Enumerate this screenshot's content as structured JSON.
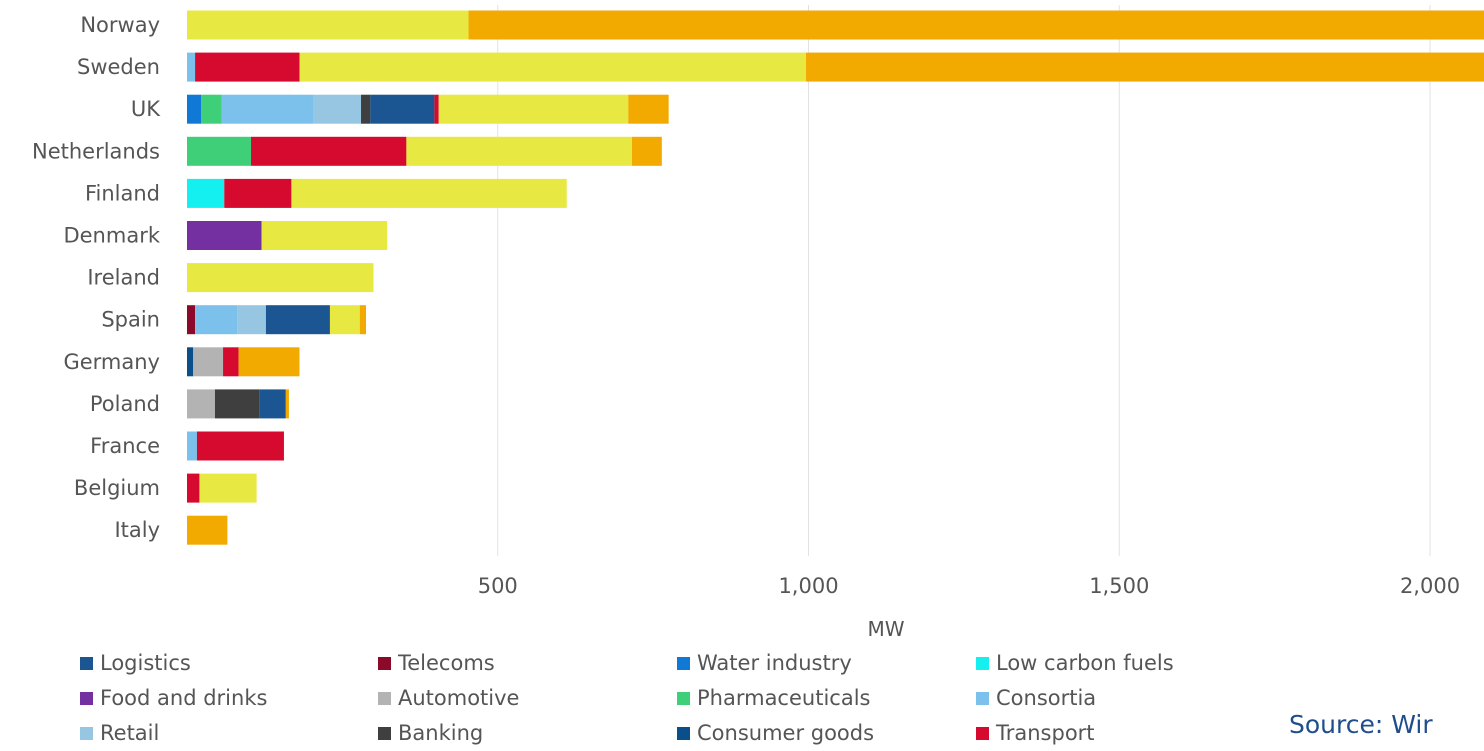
{
  "chart_data": {
    "type": "bar",
    "orientation": "horizontal",
    "stacked": true,
    "title": "",
    "xlabel": "MW",
    "ylabel": "",
    "xlim": [
      0,
      2100
    ],
    "x_ticks": [
      500,
      1000,
      1500,
      2000
    ],
    "x_tick_labels": [
      "500",
      "1,000",
      "1,500",
      "2,000"
    ],
    "grid": true,
    "legend_position": "bottom",
    "categories": [
      "Norway",
      "Sweden",
      "UK",
      "Netherlands",
      "Finland",
      "Denmark",
      "Ireland",
      "Spain",
      "Germany",
      "Poland",
      "France",
      "Belgium",
      "Italy"
    ],
    "series": [
      {
        "name": "Consumer goods",
        "color": "#0a4f8a",
        "values": [
          0,
          0,
          0,
          0,
          0,
          0,
          0,
          0,
          10,
          0,
          0,
          0,
          0
        ]
      },
      {
        "name": "Telecoms",
        "color": "#8b0a2a",
        "values": [
          0,
          0,
          0,
          0,
          0,
          0,
          0,
          13,
          0,
          0,
          0,
          0,
          0
        ]
      },
      {
        "name": "Water industry",
        "color": "#1079d6",
        "values": [
          0,
          0,
          23,
          0,
          0,
          0,
          0,
          0,
          0,
          0,
          0,
          0,
          0
        ]
      },
      {
        "name": "Pharmaceuticals",
        "color": "#3ecf78",
        "values": [
          0,
          0,
          33,
          103,
          0,
          0,
          0,
          0,
          0,
          0,
          0,
          0,
          0
        ]
      },
      {
        "name": "Low carbon fuels",
        "color": "#14f0f0",
        "values": [
          0,
          0,
          0,
          0,
          60,
          0,
          0,
          0,
          0,
          0,
          0,
          0,
          0
        ]
      },
      {
        "name": "Food and drinks",
        "color": "#7430a0",
        "values": [
          0,
          0,
          0,
          0,
          0,
          120,
          0,
          0,
          0,
          0,
          0,
          0,
          0
        ]
      },
      {
        "name": "Automotive",
        "color": "#b3b3b3",
        "values": [
          0,
          0,
          0,
          0,
          0,
          0,
          0,
          0,
          48,
          45,
          0,
          0,
          0
        ]
      },
      {
        "name": "Consortia",
        "color": "#7cc0ec",
        "values": [
          0,
          13,
          148,
          0,
          0,
          0,
          0,
          68,
          0,
          0,
          16,
          0,
          0
        ]
      },
      {
        "name": "Retail",
        "color": "#96c6e2",
        "values": [
          0,
          0,
          76,
          0,
          0,
          0,
          0,
          46,
          0,
          0,
          0,
          0,
          0
        ]
      },
      {
        "name": "Banking",
        "color": "#3f3f3f",
        "values": [
          0,
          0,
          15,
          0,
          0,
          0,
          0,
          0,
          0,
          72,
          0,
          0,
          0
        ]
      },
      {
        "name": "Logistics",
        "color": "#1b5592",
        "values": [
          0,
          0,
          103,
          0,
          0,
          0,
          0,
          103,
          0,
          42,
          0,
          0,
          0
        ]
      },
      {
        "name": "Transport",
        "color": "#d6092f",
        "values": [
          0,
          168,
          7,
          250,
          108,
          0,
          0,
          0,
          25,
          0,
          140,
          20,
          0
        ]
      },
      {
        "name": "",
        "color": "#e8e843",
        "values": [
          453,
          815,
          305,
          363,
          443,
          202,
          300,
          48,
          0,
          0,
          0,
          92,
          0
        ]
      },
      {
        "name": "",
        "color": "#f2aa00",
        "values": [
          1700,
          1100,
          65,
          48,
          0,
          0,
          0,
          10,
          98,
          5,
          0,
          0,
          65
        ]
      }
    ]
  },
  "legend": [
    {
      "label": "Logistics",
      "color": "#1b5592"
    },
    {
      "label": "Telecoms",
      "color": "#8b0a2a"
    },
    {
      "label": "Water industry",
      "color": "#1079d6"
    },
    {
      "label": "Low carbon fuels",
      "color": "#14f0f0"
    },
    {
      "label": "Food and drinks",
      "color": "#7430a0"
    },
    {
      "label": "Automotive",
      "color": "#b3b3b3"
    },
    {
      "label": "Pharmaceuticals",
      "color": "#3ecf78"
    },
    {
      "label": "Consortia",
      "color": "#7cc0ec"
    },
    {
      "label": "Retail",
      "color": "#96c6e2"
    },
    {
      "label": "Banking",
      "color": "#3f3f3f"
    },
    {
      "label": "Consumer goods",
      "color": "#0a4f8a"
    },
    {
      "label": "Transport",
      "color": "#d6092f"
    }
  ],
  "source_text": "Source: Wir"
}
